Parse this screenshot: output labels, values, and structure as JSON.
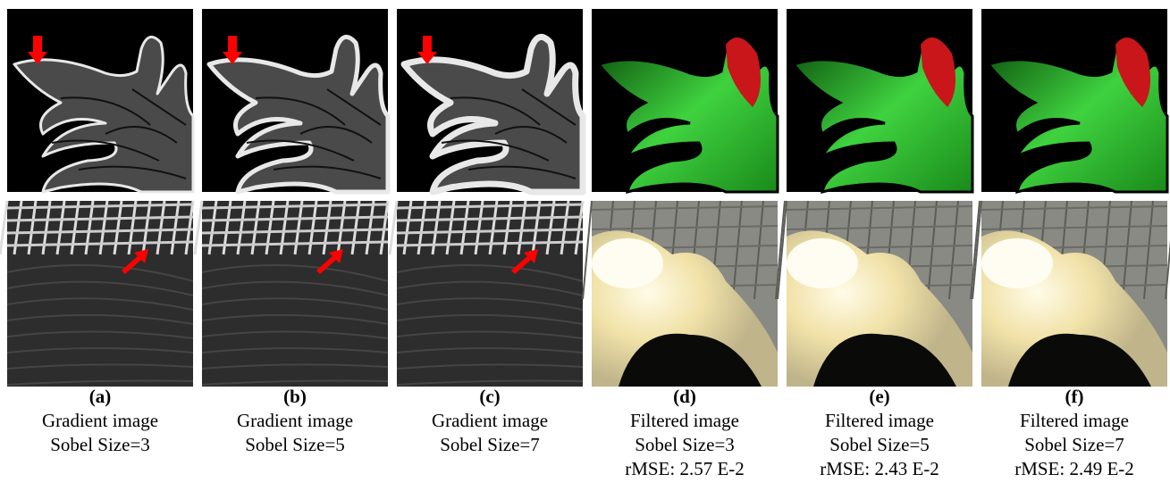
{
  "panels": [
    {
      "label": "(a)",
      "lines": [
        "Gradient image",
        "Sobel Size=3"
      ],
      "kind": "gradient"
    },
    {
      "label": "(b)",
      "lines": [
        "Gradient image",
        "Sobel Size=5"
      ],
      "kind": "gradient"
    },
    {
      "label": "(c)",
      "lines": [
        "Gradient image",
        "Sobel Size=7"
      ],
      "kind": "gradient"
    },
    {
      "label": "(d)",
      "lines": [
        "Filtered image",
        "Sobel Size=3",
        "rMSE: 2.57 E-2"
      ],
      "kind": "filtered"
    },
    {
      "label": "(e)",
      "lines": [
        "Filtered image",
        "Sobel Size=5",
        "rMSE: 2.43 E-2"
      ],
      "kind": "filtered"
    },
    {
      "label": "(f)",
      "lines": [
        "Filtered image",
        "Sobel Size=7",
        "rMSE: 2.49 E-2"
      ],
      "kind": "filtered"
    }
  ]
}
